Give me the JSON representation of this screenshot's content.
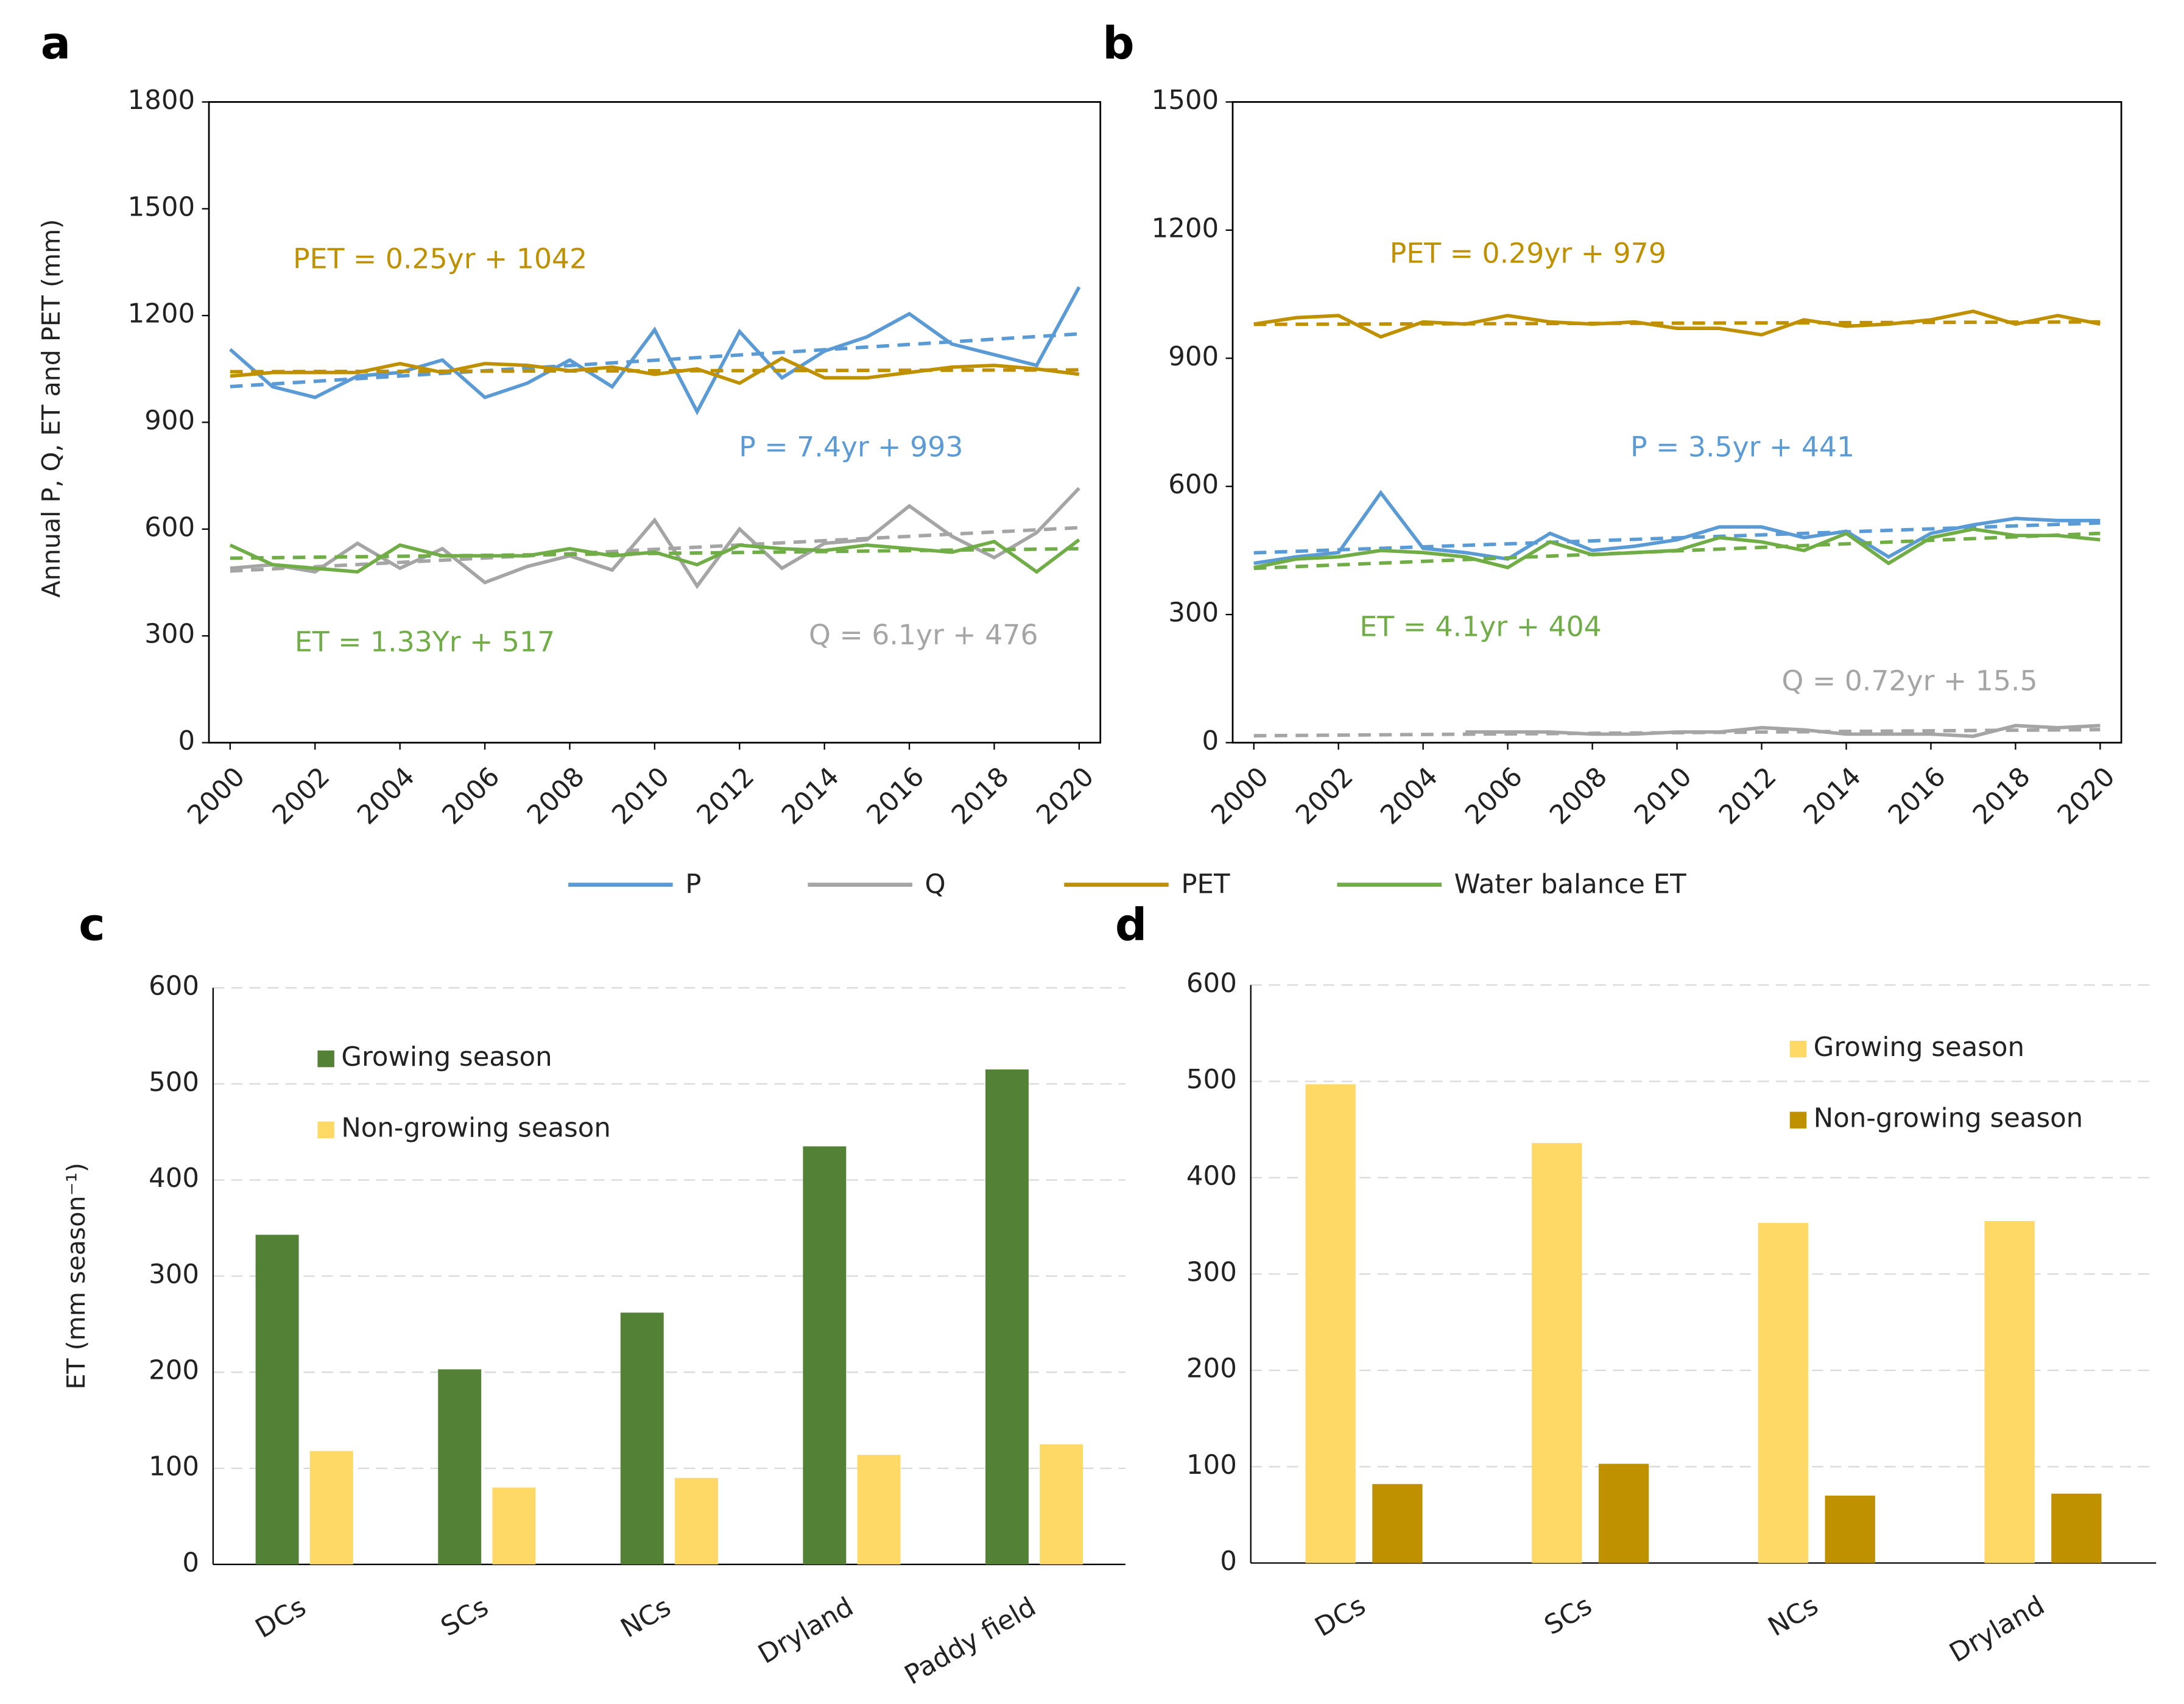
{
  "chart_data": [
    {
      "type": "line",
      "panel": "a",
      "y_label": "Annual P, Q, ET and PET (mm)",
      "x": [
        2000,
        2001,
        2002,
        2003,
        2004,
        2005,
        2006,
        2007,
        2008,
        2009,
        2010,
        2011,
        2012,
        2013,
        2014,
        2015,
        2016,
        2017,
        2018,
        2019,
        2020
      ],
      "xlim": [
        1999.5,
        2020.5
      ],
      "xticks": [
        2000,
        2002,
        2004,
        2006,
        2008,
        2010,
        2012,
        2014,
        2016,
        2018,
        2020
      ],
      "ylim": [
        0,
        1800
      ],
      "yticks": [
        0,
        300,
        600,
        900,
        1200,
        1500,
        1800
      ],
      "series": [
        {
          "name": "P",
          "color": "#5b9bd5",
          "values": [
            1105,
            1000,
            970,
            1030,
            1040,
            1075,
            970,
            1010,
            1075,
            1000,
            1160,
            930,
            1155,
            1025,
            1100,
            1140,
            1205,
            1120,
            1090,
            1060,
            1280
          ],
          "trend": {
            "slope": 7.4,
            "intercept": 993,
            "label": "P = 7.4yr + 993"
          }
        },
        {
          "name": "Q",
          "color": "#a5a5a5",
          "values": [
            490,
            500,
            480,
            560,
            490,
            545,
            450,
            495,
            525,
            485,
            625,
            440,
            600,
            490,
            560,
            570,
            665,
            580,
            520,
            590,
            715
          ],
          "trend": {
            "slope": 6.1,
            "intercept": 476,
            "label": "Q = 6.1yr + 476"
          }
        },
        {
          "name": "PET",
          "color": "#bf9000",
          "values": [
            1030,
            1040,
            1040,
            1040,
            1065,
            1040,
            1065,
            1060,
            1045,
            1055,
            1035,
            1050,
            1010,
            1080,
            1025,
            1025,
            1040,
            1055,
            1060,
            1050,
            1035
          ],
          "trend": {
            "slope": 0.25,
            "intercept": 1042,
            "label": "PET = 0.25yr + 1042"
          }
        },
        {
          "name": "Water balance ET",
          "color": "#70ad47",
          "values": [
            555,
            500,
            490,
            480,
            555,
            525,
            525,
            525,
            545,
            525,
            535,
            500,
            555,
            545,
            540,
            555,
            545,
            535,
            565,
            480,
            570
          ],
          "trend": {
            "slope": 1.33,
            "intercept": 517,
            "label": "ET = 1.33Yr + 517"
          }
        }
      ]
    },
    {
      "type": "line",
      "panel": "b",
      "x": [
        2000,
        2001,
        2002,
        2003,
        2004,
        2005,
        2006,
        2007,
        2008,
        2009,
        2010,
        2011,
        2012,
        2013,
        2014,
        2015,
        2016,
        2017,
        2018,
        2019,
        2020
      ],
      "xlim": [
        1999.5,
        2020.5
      ],
      "xticks": [
        2000,
        2002,
        2004,
        2006,
        2008,
        2010,
        2012,
        2014,
        2016,
        2018,
        2020
      ],
      "ylim": [
        0,
        1500
      ],
      "yticks": [
        0,
        300,
        600,
        900,
        1200,
        1500
      ],
      "series": [
        {
          "color": "#5b9bd5",
          "values": [
            420,
            435,
            445,
            585,
            455,
            445,
            430,
            490,
            450,
            460,
            475,
            505,
            505,
            480,
            495,
            435,
            490,
            510,
            525,
            520,
            520
          ],
          "trend": {
            "slope": 3.5,
            "intercept": 441,
            "label": "P = 3.5yr + 441"
          }
        },
        {
          "color": "#a5a5a5",
          "values": [
            null,
            null,
            null,
            null,
            null,
            25,
            25,
            25,
            20,
            20,
            25,
            25,
            35,
            30,
            20,
            20,
            20,
            15,
            40,
            35,
            40
          ],
          "trend": {
            "slope": 0.72,
            "intercept": 15.5,
            "label": "Q = 0.72yr + 15.5"
          }
        },
        {
          "color": "#bf9000",
          "values": [
            980,
            995,
            1000,
            950,
            985,
            980,
            1000,
            985,
            980,
            985,
            970,
            970,
            955,
            990,
            975,
            980,
            990,
            1010,
            980,
            1000,
            980
          ],
          "trend": {
            "slope": 0.29,
            "intercept": 979,
            "label": "PET = 0.29yr + 979"
          }
        },
        {
          "color": "#70ad47",
          "values": [
            410,
            430,
            435,
            450,
            445,
            435,
            410,
            470,
            440,
            445,
            450,
            480,
            470,
            450,
            490,
            420,
            480,
            500,
            485,
            485,
            475
          ],
          "trend": {
            "slope": 4.1,
            "intercept": 404,
            "label": "ET = 4.1yr + 404"
          }
        }
      ]
    },
    {
      "type": "bar",
      "panel": "c",
      "y_label": "ET (mm season⁻¹)",
      "grid": true,
      "categories": [
        "DCs",
        "SCs",
        "NCs",
        "Dryland",
        "Paddy field"
      ],
      "ylim": [
        0,
        600
      ],
      "yticks": [
        0,
        100,
        200,
        300,
        400,
        500,
        600
      ],
      "series": [
        {
          "name": "Growing season",
          "color": "#538135",
          "values": [
            343,
            203,
            262,
            435,
            515
          ]
        },
        {
          "name": "Non-growing season",
          "color": "#ffd966",
          "values": [
            118,
            80,
            90,
            114,
            125
          ]
        }
      ]
    },
    {
      "type": "bar",
      "panel": "d",
      "grid": true,
      "categories": [
        "DCs",
        "SCs",
        "NCs",
        "Dryland"
      ],
      "ylim": [
        0,
        600
      ],
      "yticks": [
        0,
        100,
        200,
        300,
        400,
        500,
        600
      ],
      "series": [
        {
          "name": "Growing season",
          "color": "#ffd966",
          "values": [
            497,
            436,
            353,
            355
          ]
        },
        {
          "name": "Non-growing season",
          "color": "#bf9000",
          "values": [
            82,
            103,
            70,
            72
          ]
        }
      ]
    }
  ]
}
